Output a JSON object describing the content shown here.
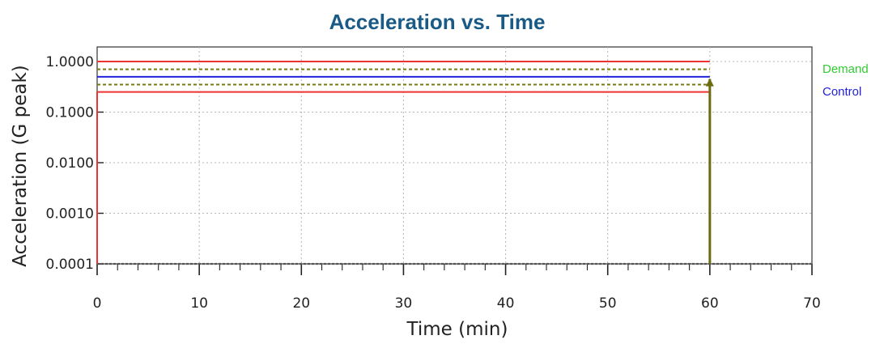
{
  "chart_data": {
    "type": "line",
    "title": "Acceleration vs. Time",
    "xlabel": "Time (min)",
    "ylabel": "Acceleration (G peak)",
    "x_ticks": [
      "0",
      "10",
      "20",
      "30",
      "40",
      "50",
      "60",
      "70"
    ],
    "y_ticks": [
      "0.0001",
      "0.0010",
      "0.0100",
      "0.1000",
      "1.0000"
    ],
    "xlim": [
      0,
      70
    ],
    "ylim": [
      0.0001,
      1.0
    ],
    "y_scale": "log",
    "grid": true,
    "legend_position": "right",
    "legend": [
      {
        "name": "Demand",
        "color": "#33cc33"
      },
      {
        "name": "Control",
        "color": "#2222dd"
      }
    ],
    "series": [
      {
        "name": "Control",
        "color": "#2222dd",
        "style": "solid",
        "x": [
          0,
          60
        ],
        "y": [
          0.5,
          0.5
        ]
      },
      {
        "name": "Demand",
        "color": "#7a7a10",
        "style": "dotted",
        "x": [
          0,
          60
        ],
        "y": [
          0.7,
          0.7
        ]
      },
      {
        "name": "",
        "color": "#7a7a10",
        "style": "dotted",
        "x": [
          0,
          60
        ],
        "y": [
          0.35,
          0.35
        ]
      },
      {
        "name": "",
        "color": "#ee3333",
        "style": "solid",
        "x": [
          0,
          60
        ],
        "y": [
          1.0,
          1.0
        ]
      },
      {
        "name": "",
        "color": "#ee3333",
        "style": "solid",
        "x": [
          0,
          60
        ],
        "y": [
          0.25,
          0.25
        ]
      }
    ],
    "vertical_markers": [
      {
        "x": 0,
        "y_from": 0.0001,
        "y_to": 0.25,
        "color": "#ee3333"
      },
      {
        "x": 60,
        "y_from": 0.0001,
        "y_to": 0.45,
        "color": "#6b6b10",
        "arrow": true
      }
    ],
    "baseline": {
      "y": 0.0001,
      "color": "#555555",
      "style": "dotted"
    }
  }
}
